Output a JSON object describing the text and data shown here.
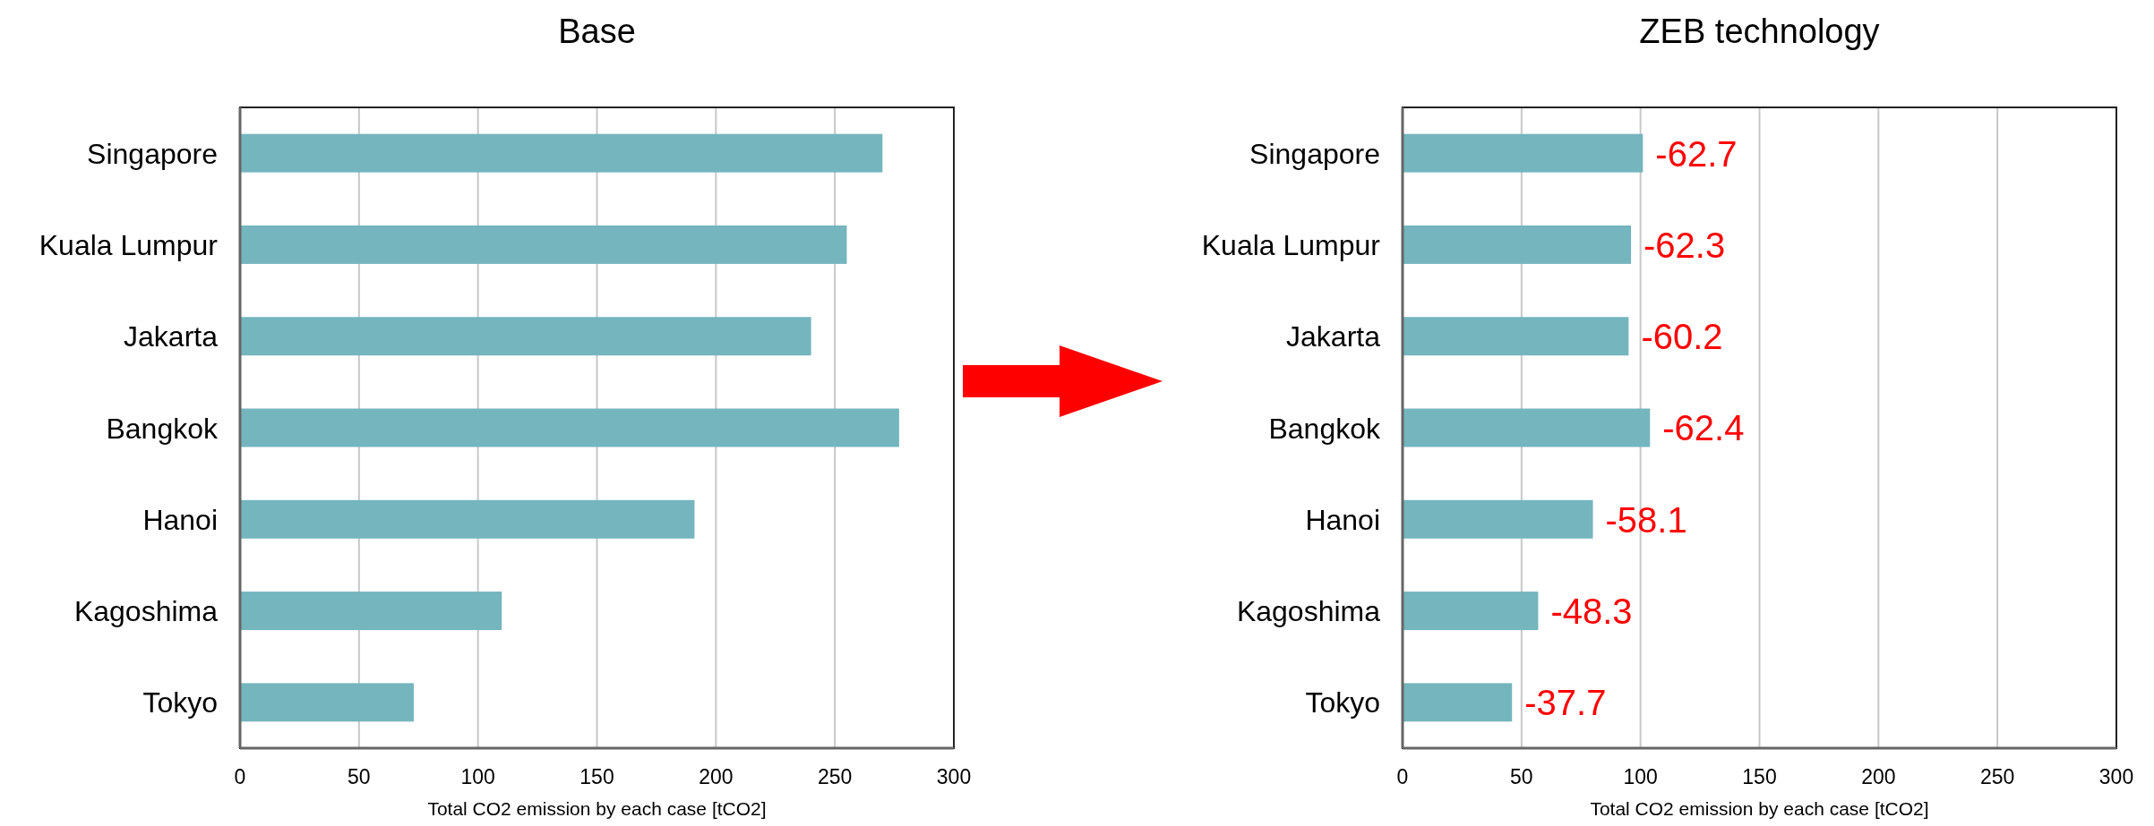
{
  "chart_data": [
    {
      "type": "bar",
      "orientation": "horizontal",
      "title": "Base",
      "xlabel": "Total CO2 emission by each case [tCO2]",
      "categories": [
        "Singapore",
        "Kuala Lumpur",
        "Jakarta",
        "Bangkok",
        "Hanoi",
        "Kagoshima",
        "Tokyo"
      ],
      "values": [
        270,
        255,
        240,
        277,
        191,
        110,
        73
      ],
      "color": "#74b5be",
      "xlim": [
        0,
        300
      ],
      "xticks": [
        0,
        50,
        100,
        150,
        200,
        250,
        300
      ],
      "grid": "x"
    },
    {
      "type": "bar",
      "orientation": "horizontal",
      "title": "ZEB technology",
      "xlabel": "Total CO2 emission by each case [tCO2]",
      "categories": [
        "Singapore",
        "Kuala Lumpur",
        "Jakarta",
        "Bangkok",
        "Hanoi",
        "Kagoshima",
        "Tokyo"
      ],
      "values": [
        101,
        96,
        95,
        104,
        80,
        57,
        46
      ],
      "annotations": [
        {
          "text": "-62.7",
          "x": 101,
          "y": "Singapore"
        },
        {
          "text": "-62.3",
          "x": 96,
          "y": "Kuala Lumpur"
        },
        {
          "text": "-60.2",
          "x": 95,
          "y": "Jakarta"
        },
        {
          "text": "-62.4",
          "x": 104,
          "y": "Bangkok"
        },
        {
          "text": "-58.1",
          "x": 80,
          "y": "Hanoi"
        },
        {
          "text": "-48.3",
          "x": 57,
          "y": "Kagoshima"
        },
        {
          "text": "-37.7",
          "x": 46,
          "y": "Tokyo"
        }
      ],
      "color": "#74b5be",
      "xlim": [
        0,
        300
      ],
      "xticks": [
        0,
        50,
        100,
        150,
        200,
        250,
        300
      ],
      "grid": "x"
    }
  ]
}
